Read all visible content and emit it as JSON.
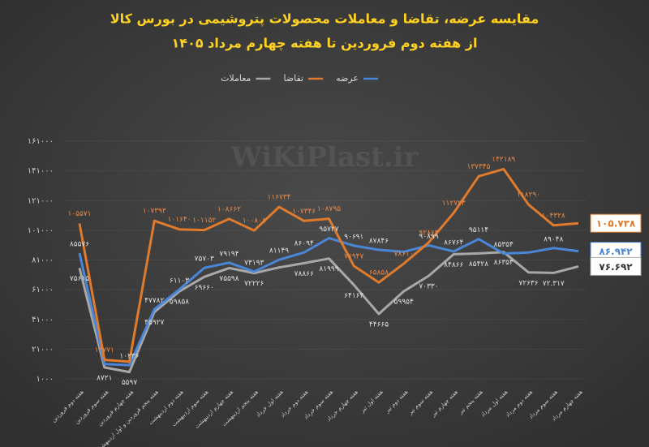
{
  "chart_data": {
    "type": "line",
    "title": "مقایسه عرضه، تقاضا و معاملات محصولات پتروشیمی در بورس کالا",
    "subtitle": "از هفته دوم فروردین تا هفته چهارم مرداد ۱۴۰۵",
    "watermark": "WiKiPlast.ir",
    "categories": [
      "هفته دوم فروردین",
      "هفته سوم فروردین",
      "هفته چهارم فروردین",
      "هفته پنجم فروردین و اول اردیبهشت",
      "هفته دوم اردیبهشت",
      "هفته سوم اردیبهشت",
      "هفته چهارم اردیبهشت",
      "هفته پنجم اردیبهشت",
      "هفته اول خرداد",
      "هفته دوم خرداد",
      "هفته سوم خرداد",
      "هفته چهارم خرداد",
      "هفته اول تیر",
      "هفته دوم تیر",
      "هفته سوم تیر",
      "هفته چهارم تیر",
      "هفته پنجم تیر",
      "هفته اول مرداد",
      "هفته دوم مرداد",
      "هفته سوم مرداد",
      "هفته چهارم مرداد"
    ],
    "series": [
      {
        "name": "عرضه",
        "color": "#4a86d8",
        "values": [
          85576,
          11000,
          10236,
          47782,
          61103,
          75703,
          79194,
          73193,
          81149,
          86094,
          95727,
          90691,
          87846,
          86500,
          90899,
          86764,
          95114,
          85354,
          86000,
          89048,
          86942
        ],
        "value_labels": [
          "۸۵۵۷۶",
          null,
          "۱۰۲۳۶",
          "۴۷۷۸۲",
          "۶۱۱۰۳",
          "۷۵۷۰۳",
          "۷۹۱۹۴",
          "۷۳۱۹۳",
          "۸۱۱۴۹",
          "۸۶۰۹۴",
          "۹۵۷۲۷",
          "۹۰۶۹۱",
          "۸۷۸۴۶",
          null,
          "۹۰۸۹۹",
          "۸۶۷۶۴",
          "۹۵۱۱۴",
          "۸۵۳۵۴",
          null,
          "۸۹۰۴۸",
          "۸۶.۹۴۲"
        ]
      },
      {
        "name": "تقاضا",
        "color": "#e07a2c",
        "values": [
          105571,
          13771,
          12500,
          107393,
          101640,
          101152,
          108662,
          100808,
          116734,
          107346,
          108795,
          76947,
          65858,
          78610,
          92863,
          112723,
          137345,
          142189,
          118290,
          104328,
          105738
        ],
        "value_labels": [
          "۱۰۵۵۷۱",
          "۱۳۷۷۱",
          null,
          "۱۰۷۳۹۳",
          "۱۰۱۶۴۰",
          "۱۰۱۱۵۲",
          "۱۰۸۶۶۲",
          "۱۰۰۸۰۸",
          "۱۱۶۷۳۴",
          "۱۰۷۳۴۶",
          "۱۰۸۷۹۵",
          "۷۶۹۴۷",
          "۶۵۸۵۸",
          "۷۸۶۱۰",
          "۹۲۸۶۳",
          "۱۱۲۷۲۳",
          "۱۳۷۳۴۵",
          "۱۴۲۱۸۹",
          "۱۱۸۲۹۰",
          "۱۰۴۳۲۸",
          "۱۰۵.۷۳۸"
        ]
      },
      {
        "name": "معاملات",
        "color": "#a8a8a8",
        "values": [
          75615,
          8721,
          5597,
          45927,
          59858,
          69660,
          75598,
          72226,
          76000,
          78866,
          81999,
          64164,
          44665,
          59954,
          70330,
          84866,
          85428,
          86354,
          72636,
          72317,
          76692
        ],
        "value_labels": [
          "۷۵۶۱۵",
          "۸۷۲۱",
          "۵۵۹۷",
          "۴۵۹۲۷",
          "۵۹۸۵۸",
          "۶۹۶۶۰",
          "۷۵۵۹۸",
          "۷۲۲۲۶",
          null,
          "۷۸۸۶۶",
          "۸۱۹۹۹",
          "۶۴۱۶۴",
          "۴۴۶۶۵",
          "۵۹۹۵۴",
          "۷۰۳۳۰",
          "۸۴۸۶۶",
          "۸۵۴۲۸",
          "۸۶۳۵۴",
          "۷۲۶۳۶",
          "۷۲.۳۱۷",
          "۷۶.۶۹۲"
        ]
      }
    ],
    "ylim": [
      1000,
      161000
    ],
    "yticks": [
      {
        "value": 1000,
        "label": "۱۰۰۰"
      },
      {
        "value": 21000,
        "label": "۲۱۰۰۰"
      },
      {
        "value": 41000,
        "label": "۴۱۰۰۰"
      },
      {
        "value": 61000,
        "label": "۶۱۰۰۰"
      },
      {
        "value": 81000,
        "label": "۸۱۰۰۰"
      },
      {
        "value": 101000,
        "label": "۱۰۱۰۰۰"
      },
      {
        "value": 121000,
        "label": "۱۲۱۰۰۰"
      },
      {
        "value": 141000,
        "label": "۱۴۱۰۰۰"
      },
      {
        "value": 161000,
        "label": "۱۶۱۰۰۰"
      }
    ],
    "grid": true
  }
}
